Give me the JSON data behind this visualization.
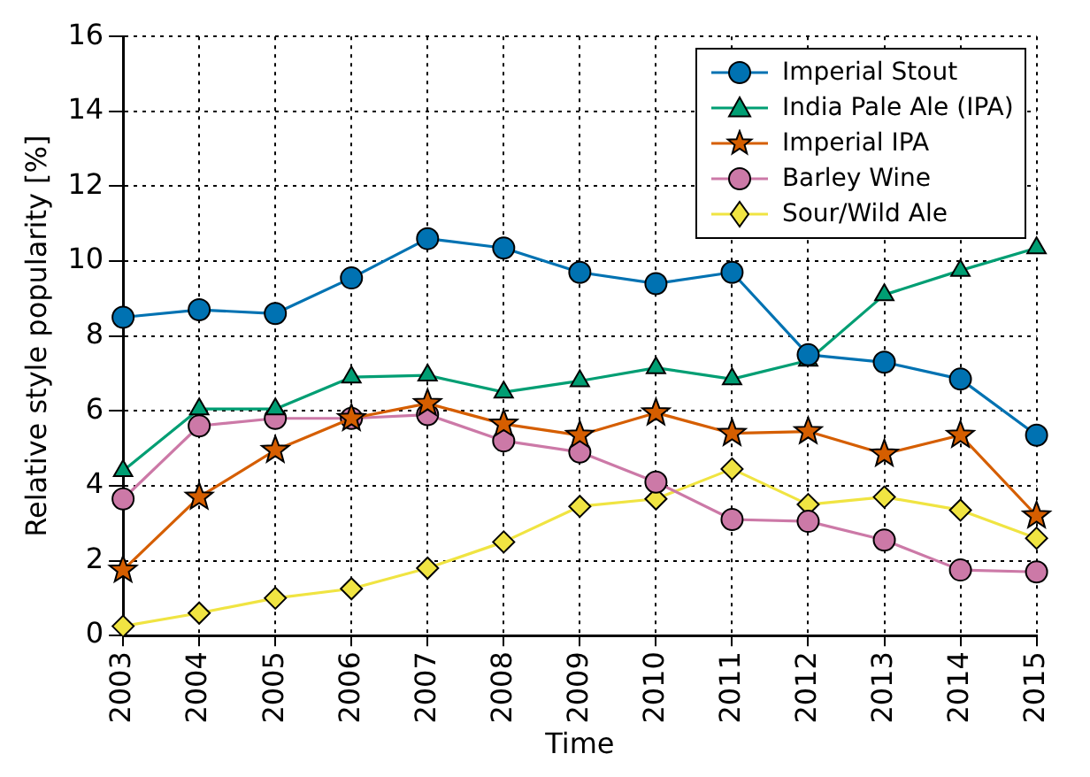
{
  "chart_data": {
    "type": "line",
    "xlabel": "Time",
    "ylabel": "Relative style popularity [%]",
    "categories": [
      "2003",
      "2004",
      "2005",
      "2006",
      "2007",
      "2008",
      "2009",
      "2010",
      "2011",
      "2012",
      "2013",
      "2014",
      "2015"
    ],
    "ylim": [
      0,
      16
    ],
    "yticks": [
      0,
      2,
      4,
      6,
      8,
      10,
      12,
      14,
      16
    ],
    "grid": true,
    "legend": "top right",
    "line_style": "solid",
    "series": [
      {
        "name": "Imperial Stout",
        "color": "#0072b2",
        "marker": "circle",
        "values": [
          8.5,
          8.7,
          8.6,
          9.55,
          10.6,
          10.35,
          9.7,
          9.4,
          9.7,
          7.5,
          7.3,
          6.85,
          5.35
        ]
      },
      {
        "name": "India Pale Ale (IPA)",
        "color": "#009e73",
        "marker": "triangle",
        "values": [
          4.4,
          6.05,
          6.05,
          6.9,
          6.95,
          6.5,
          6.8,
          7.15,
          6.85,
          7.35,
          9.1,
          9.75,
          10.35
        ]
      },
      {
        "name": "Imperial IPA",
        "color": "#d55e00",
        "marker": "star",
        "values": [
          1.75,
          3.7,
          4.95,
          5.8,
          6.2,
          5.65,
          5.35,
          5.95,
          5.4,
          5.45,
          4.85,
          5.35,
          3.2
        ]
      },
      {
        "name": "Barley Wine",
        "color": "#cc79a7",
        "marker": "circle",
        "values": [
          3.65,
          5.6,
          5.8,
          5.8,
          5.9,
          5.2,
          4.9,
          4.1,
          3.1,
          3.05,
          2.55,
          1.75,
          1.7
        ]
      },
      {
        "name": "Sour/Wild Ale",
        "color": "#f0e442",
        "marker": "diamond",
        "values": [
          0.25,
          0.6,
          1.0,
          1.25,
          1.8,
          2.5,
          3.45,
          3.65,
          4.45,
          3.5,
          3.7,
          3.35,
          2.6
        ]
      }
    ]
  }
}
